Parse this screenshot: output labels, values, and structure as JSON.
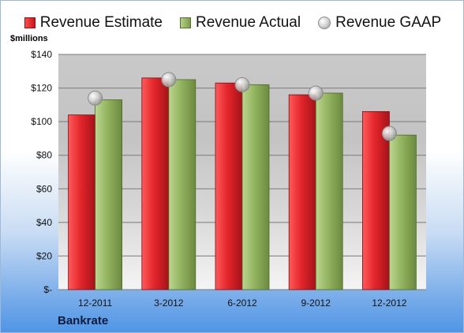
{
  "legend": {
    "estimate_label": "Revenue Estimate",
    "actual_label": "Revenue Actual",
    "gaap_label": "Revenue GAAP"
  },
  "units_label": "$millions",
  "company": "Bankrate",
  "colors": {
    "estimate": "#d51f25",
    "actual": "#8faf5c",
    "gaap": "#c8c8c8"
  },
  "chart_data": {
    "type": "bar",
    "categories": [
      "12-2011",
      "3-2012",
      "6-2012",
      "9-2012",
      "12-2012"
    ],
    "series": [
      {
        "name": "Revenue Estimate",
        "values": [
          104,
          126,
          123,
          116,
          106
        ]
      },
      {
        "name": "Revenue Actual",
        "values": [
          113,
          125,
          122,
          117,
          92
        ]
      },
      {
        "name": "Revenue GAAP",
        "values": [
          114,
          125,
          122,
          117,
          93
        ]
      }
    ],
    "ylabel": "$millions",
    "ylim": [
      0,
      140
    ],
    "y_ticks": [
      {
        "value": 0,
        "label": "$-"
      },
      {
        "value": 20,
        "label": "$20"
      },
      {
        "value": 40,
        "label": "$40"
      },
      {
        "value": 60,
        "label": "$60"
      },
      {
        "value": 80,
        "label": "$80"
      },
      {
        "value": 100,
        "label": "$100"
      },
      {
        "value": 120,
        "label": "$120"
      },
      {
        "value": 140,
        "label": "$140"
      }
    ],
    "grid": true,
    "legend_position": "top"
  }
}
